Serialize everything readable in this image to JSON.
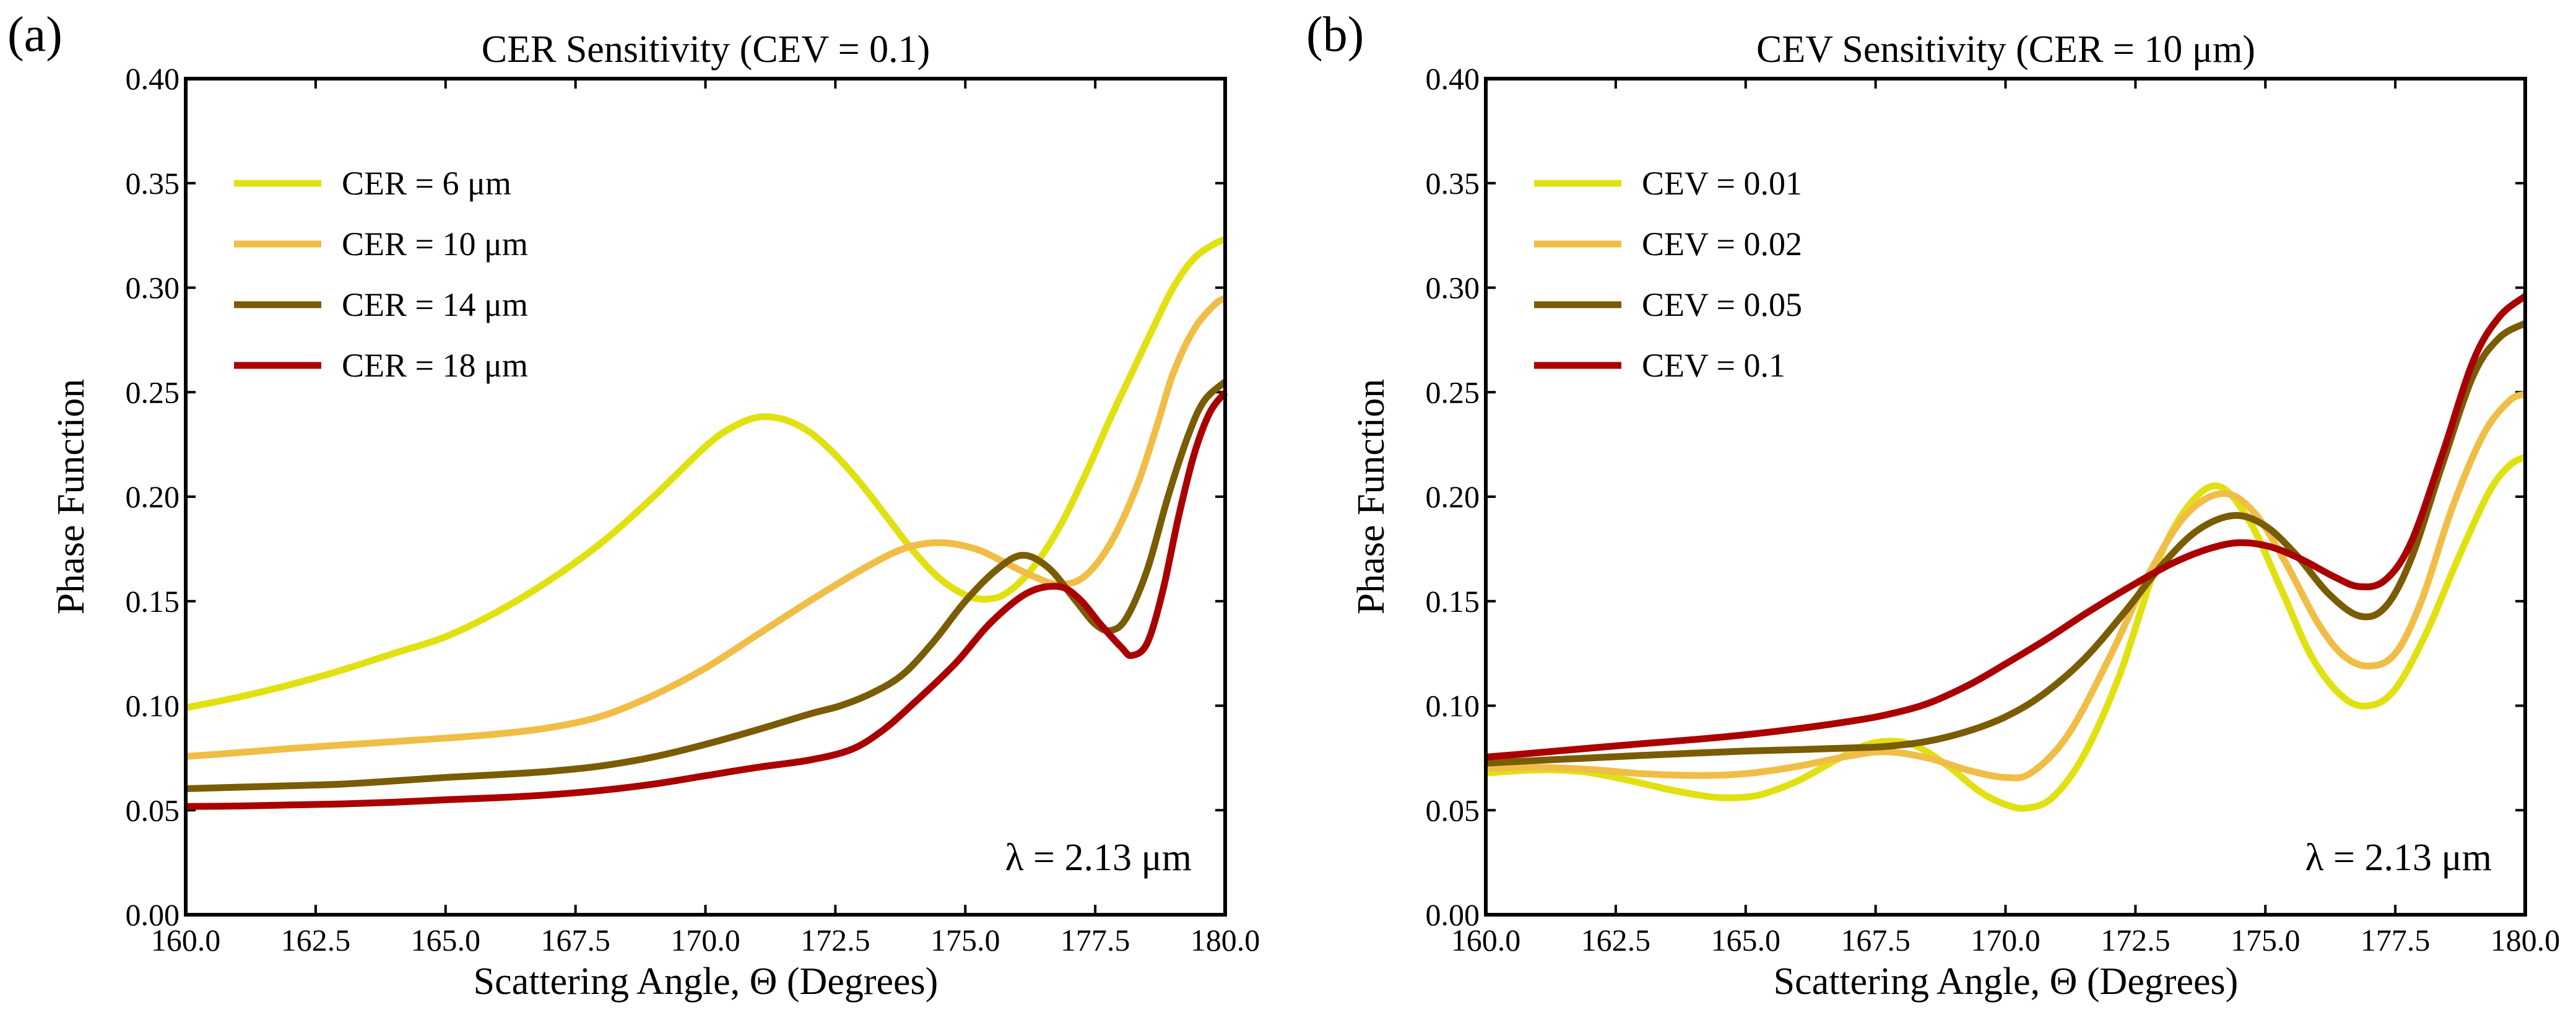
{
  "chart_data": [
    {
      "type": "line",
      "panel_label": "(a)",
      "title": "CER Sensitivity (CEV = 0.1)",
      "xlabel": "Scattering Angle, Θ (Degrees)",
      "ylabel": "Phase Function",
      "xlim": [
        160.0,
        180.0
      ],
      "ylim": [
        0.0,
        0.4
      ],
      "xticks": [
        "160.0",
        "162.5",
        "165.0",
        "167.5",
        "170.0",
        "172.5",
        "175.0",
        "177.5",
        "180.0"
      ],
      "yticks": [
        "0.00",
        "0.05",
        "0.10",
        "0.15",
        "0.20",
        "0.25",
        "0.30",
        "0.35",
        "0.40"
      ],
      "grid": false,
      "legend_position": "upper-left",
      "annotation": "λ = 2.13 μm",
      "series": [
        {
          "name": "CER = 6 μm",
          "color": "#e1e112",
          "x": [
            160.0,
            161.0,
            162.0,
            163.0,
            164.0,
            165.0,
            166.0,
            167.0,
            168.0,
            169.0,
            170.0,
            170.5,
            171.0,
            171.5,
            172.0,
            172.5,
            173.0,
            173.5,
            174.0,
            174.5,
            175.0,
            175.4,
            175.8,
            176.3,
            176.8,
            177.3,
            177.8,
            178.2,
            178.6,
            179.0,
            179.4,
            179.8,
            180.0
          ],
          "y": [
            0.099,
            0.104,
            0.11,
            0.117,
            0.125,
            0.133,
            0.145,
            0.16,
            0.178,
            0.2,
            0.224,
            0.233,
            0.238,
            0.237,
            0.231,
            0.22,
            0.206,
            0.19,
            0.174,
            0.161,
            0.153,
            0.151,
            0.154,
            0.166,
            0.185,
            0.21,
            0.238,
            0.259,
            0.28,
            0.3,
            0.314,
            0.321,
            0.323
          ]
        },
        {
          "name": "CER = 10 μm",
          "color": "#f0be46",
          "x": [
            160.0,
            161.0,
            162.0,
            163.0,
            164.0,
            165.0,
            166.0,
            167.0,
            168.0,
            169.0,
            170.0,
            171.0,
            172.0,
            173.0,
            173.8,
            174.5,
            175.2,
            175.8,
            176.3,
            176.8,
            177.3,
            177.8,
            178.3,
            178.7,
            179.0,
            179.4,
            179.8,
            180.0
          ],
          "y": [
            0.0757,
            0.0775,
            0.0795,
            0.0812,
            0.0828,
            0.0845,
            0.0865,
            0.0895,
            0.095,
            0.105,
            0.118,
            0.134,
            0.15,
            0.165,
            0.175,
            0.178,
            0.175,
            0.168,
            0.162,
            0.158,
            0.162,
            0.178,
            0.205,
            0.235,
            0.259,
            0.28,
            0.292,
            0.295
          ]
        },
        {
          "name": "CER = 14 μm",
          "color": "#7a5c05",
          "x": [
            160.0,
            161.0,
            162.0,
            163.0,
            164.0,
            165.0,
            166.0,
            167.0,
            168.0,
            169.0,
            170.0,
            171.0,
            172.0,
            172.6,
            173.2,
            173.8,
            174.4,
            175.0,
            175.6,
            176.1,
            176.6,
            177.1,
            177.5,
            177.8,
            178.1,
            178.5,
            178.9,
            179.3,
            179.6,
            180.0
          ],
          "y": [
            0.0603,
            0.061,
            0.0617,
            0.0625,
            0.064,
            0.0657,
            0.067,
            0.0686,
            0.0712,
            0.0755,
            0.0815,
            0.0885,
            0.096,
            0.1,
            0.106,
            0.115,
            0.131,
            0.15,
            0.165,
            0.172,
            0.166,
            0.151,
            0.139,
            0.136,
            0.142,
            0.165,
            0.2,
            0.23,
            0.246,
            0.255
          ]
        },
        {
          "name": "CER = 18 μm",
          "color": "#aa0000",
          "x": [
            160.0,
            161.0,
            162.0,
            163.0,
            164.0,
            165.0,
            166.0,
            167.0,
            168.0,
            169.0,
            170.0,
            171.0,
            172.0,
            172.8,
            173.4,
            174.0,
            174.8,
            175.5,
            176.2,
            176.8,
            177.2,
            177.6,
            178.0,
            178.2,
            178.5,
            178.8,
            179.1,
            179.4,
            179.7,
            180.0
          ],
          "y": [
            0.0518,
            0.052,
            0.0525,
            0.053,
            0.0538,
            0.055,
            0.056,
            0.0574,
            0.0595,
            0.0625,
            0.0665,
            0.0705,
            0.074,
            0.079,
            0.088,
            0.101,
            0.12,
            0.14,
            0.154,
            0.157,
            0.151,
            0.139,
            0.128,
            0.124,
            0.13,
            0.155,
            0.19,
            0.22,
            0.24,
            0.25
          ]
        }
      ]
    },
    {
      "type": "line",
      "panel_label": "(b)",
      "title": "CEV Sensitivity (CER = 10 μm)",
      "xlabel": "Scattering Angle, Θ (Degrees)",
      "ylabel": "Phase Function",
      "xlim": [
        160.0,
        180.0
      ],
      "ylim": [
        0.0,
        0.4
      ],
      "xticks": [
        "160.0",
        "162.5",
        "165.0",
        "167.5",
        "170.0",
        "172.5",
        "175.0",
        "177.5",
        "180.0"
      ],
      "yticks": [
        "0.00",
        "0.05",
        "0.10",
        "0.15",
        "0.20",
        "0.25",
        "0.30",
        "0.35",
        "0.40"
      ],
      "grid": false,
      "legend_position": "upper-left",
      "annotation": "λ = 2.13 μm",
      "series": [
        {
          "name": "CEV = 0.01",
          "color": "#e1e112",
          "x": [
            160.0,
            160.7,
            161.3,
            162.0,
            162.8,
            163.6,
            164.3,
            164.8,
            165.3,
            166.0,
            166.7,
            167.3,
            167.8,
            168.3,
            168.9,
            169.5,
            170.0,
            170.4,
            170.9,
            171.5,
            172.2,
            172.9,
            173.5,
            174.1,
            174.7,
            175.3,
            175.9,
            176.5,
            177.0,
            177.5,
            178.1,
            178.7,
            179.3,
            179.7,
            180.0
          ],
          "y": [
            0.0678,
            0.069,
            0.0693,
            0.068,
            0.064,
            0.0595,
            0.0565,
            0.056,
            0.0575,
            0.064,
            0.0735,
            0.081,
            0.083,
            0.0805,
            0.071,
            0.059,
            0.0527,
            0.051,
            0.056,
            0.076,
            0.115,
            0.167,
            0.195,
            0.205,
            0.188,
            0.156,
            0.123,
            0.104,
            0.1,
            0.108,
            0.135,
            0.17,
            0.202,
            0.215,
            0.219
          ]
        },
        {
          "name": "CEV = 0.02",
          "color": "#f0be46",
          "x": [
            160.0,
            161.0,
            162.0,
            163.0,
            164.1,
            165.0,
            166.0,
            167.0,
            167.7,
            168.5,
            169.3,
            170.0,
            170.5,
            171.2,
            172.0,
            172.8,
            173.5,
            174.2,
            174.8,
            175.4,
            176.0,
            176.5,
            177.0,
            177.5,
            178.0,
            178.6,
            179.2,
            179.7,
            180.0
          ],
          "y": [
            0.07,
            0.0705,
            0.0695,
            0.0675,
            0.0666,
            0.0675,
            0.071,
            0.076,
            0.078,
            0.075,
            0.069,
            0.0657,
            0.068,
            0.086,
            0.123,
            0.165,
            0.192,
            0.2015,
            0.192,
            0.168,
            0.14,
            0.124,
            0.119,
            0.125,
            0.15,
            0.195,
            0.23,
            0.246,
            0.249
          ]
        },
        {
          "name": "CEV = 0.05",
          "color": "#7a5c05",
          "x": [
            160.0,
            161.0,
            162.0,
            163.0,
            164.0,
            165.0,
            166.0,
            167.0,
            167.7,
            168.5,
            169.3,
            170.0,
            170.7,
            171.5,
            172.3,
            173.0,
            173.7,
            174.4,
            175.0,
            175.6,
            176.2,
            176.8,
            177.3,
            177.8,
            178.4,
            179.0,
            179.5,
            180.0
          ],
          "y": [
            0.0725,
            0.0738,
            0.075,
            0.0762,
            0.0773,
            0.0783,
            0.079,
            0.0798,
            0.0805,
            0.083,
            0.088,
            0.0947,
            0.105,
            0.122,
            0.145,
            0.167,
            0.184,
            0.191,
            0.186,
            0.172,
            0.154,
            0.143,
            0.147,
            0.17,
            0.215,
            0.258,
            0.276,
            0.283
          ]
        },
        {
          "name": "CEV = 0.1",
          "color": "#aa0000",
          "x": [
            160.0,
            161.0,
            162.0,
            163.0,
            164.0,
            165.0,
            166.0,
            167.0,
            167.7,
            168.5,
            169.3,
            170.0,
            170.8,
            171.6,
            172.4,
            173.2,
            173.9,
            174.5,
            175.1,
            175.7,
            176.3,
            176.8,
            177.3,
            177.8,
            178.4,
            179.0,
            179.5,
            180.0
          ],
          "y": [
            0.0754,
            0.0775,
            0.0797,
            0.0818,
            0.0838,
            0.0861,
            0.089,
            0.0925,
            0.0956,
            0.101,
            0.11,
            0.12,
            0.132,
            0.145,
            0.157,
            0.168,
            0.175,
            0.178,
            0.176,
            0.17,
            0.162,
            0.157,
            0.16,
            0.178,
            0.22,
            0.265,
            0.286,
            0.296
          ]
        }
      ]
    }
  ]
}
